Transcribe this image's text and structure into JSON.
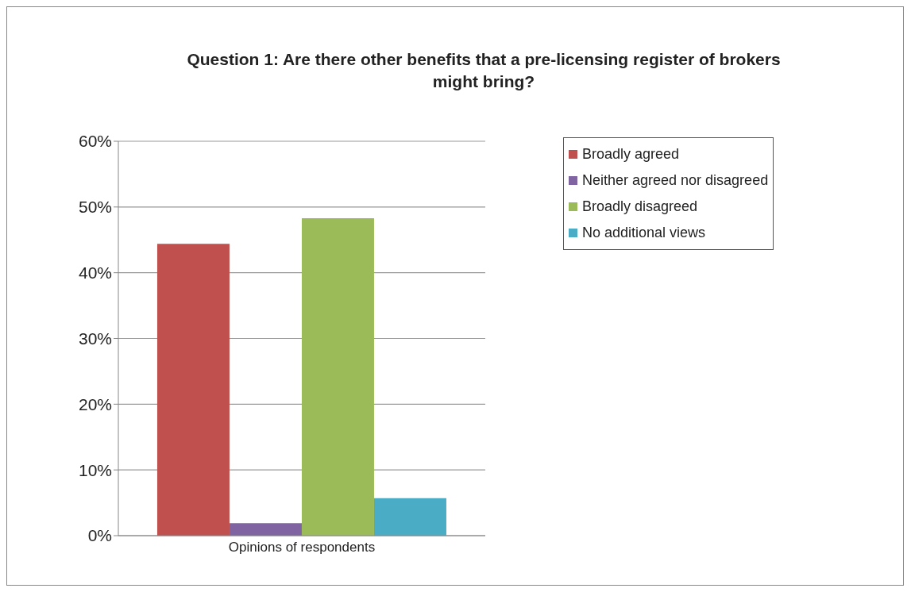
{
  "chart_data": {
    "type": "bar",
    "title": "Question 1: Are there other benefits that a pre-licensing register of brokers might bring?",
    "categories": [
      "Opinions of respondents"
    ],
    "series": [
      {
        "name": "Broadly agreed",
        "color": "#c0504d",
        "values": [
          44.4
        ]
      },
      {
        "name": "Neither agreed nor disagreed",
        "color": "#8064a2",
        "values": [
          1.9
        ]
      },
      {
        "name": "Broadly disagreed",
        "color": "#9bbb59",
        "values": [
          48.3
        ]
      },
      {
        "name": "No additional views",
        "color": "#4bacc6",
        "values": [
          5.7
        ]
      }
    ],
    "ylim": [
      0,
      60
    ],
    "yticks": [
      {
        "value": 0,
        "label": "0%"
      },
      {
        "value": 10,
        "label": "10%"
      },
      {
        "value": 20,
        "label": "20%"
      },
      {
        "value": 30,
        "label": "30%"
      },
      {
        "value": 40,
        "label": "40%"
      },
      {
        "value": 50,
        "label": "50%"
      },
      {
        "value": 60,
        "label": "60%"
      }
    ],
    "grid": "y",
    "legend": "right"
  }
}
